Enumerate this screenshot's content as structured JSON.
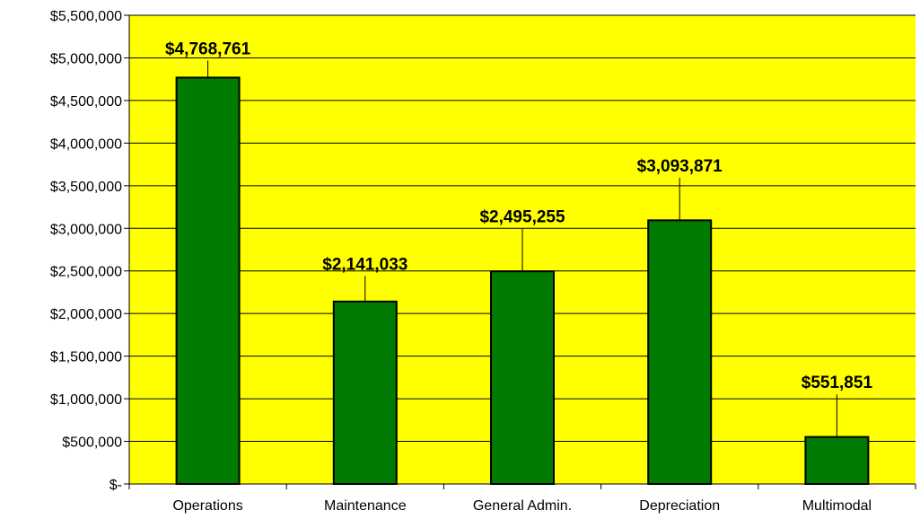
{
  "chart_data": {
    "type": "bar",
    "categories": [
      "Operations",
      "Maintenance",
      "General Admin.",
      "Depreciation",
      "Multimodal"
    ],
    "values": [
      4768761,
      2141033,
      2495255,
      3093871,
      551851
    ],
    "data_labels": [
      "$4,768,761",
      "$2,141,033",
      "$2,495,255",
      "$3,093,871",
      "$551,851"
    ],
    "ylim": [
      0,
      5500000
    ],
    "ytick_values": [
      0,
      500000,
      1000000,
      1500000,
      2000000,
      2500000,
      3000000,
      3500000,
      4000000,
      4500000,
      5000000,
      5500000
    ],
    "ytick_labels": [
      "$-",
      "$500,000",
      "$1,000,000",
      "$1,500,000",
      "$2,000,000",
      "$2,500,000",
      "$3,000,000",
      "$3,500,000",
      "$4,000,000",
      "$4,500,000",
      "$5,000,000",
      "$5,500,000"
    ],
    "label_offsets": [
      200000,
      300000,
      500000,
      500000,
      500000
    ],
    "grid": true,
    "legend": "none",
    "colors": {
      "bar": "#007a00",
      "plot_background": "#ffff00",
      "gridline": "#000000",
      "text": "#000000"
    }
  }
}
